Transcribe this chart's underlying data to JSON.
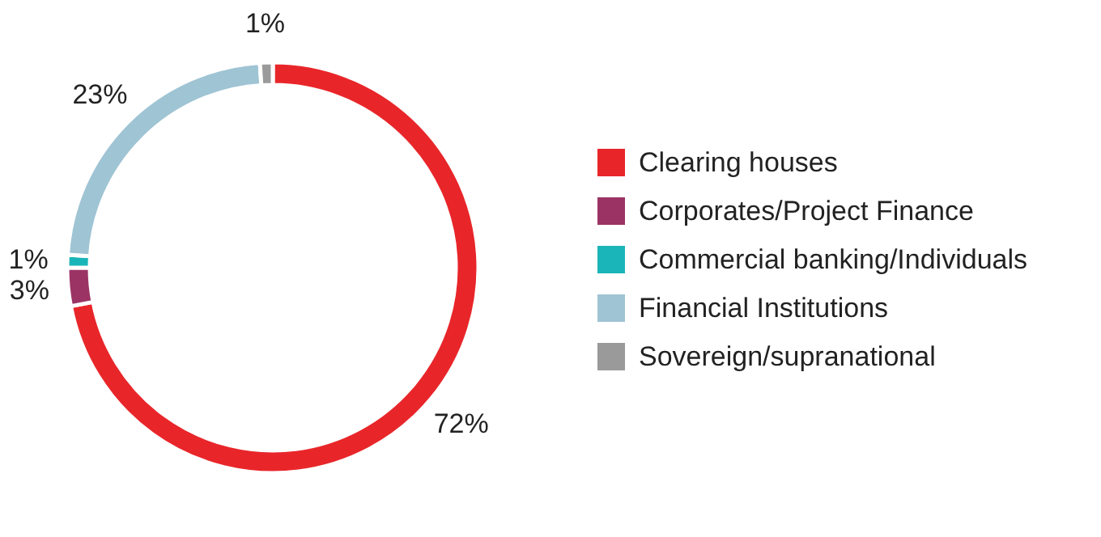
{
  "chart_data": {
    "type": "donut",
    "categories": [
      "Clearing houses",
      "Corporates/Project Finance",
      "Commercial banking/Individuals",
      "Financial Institutions",
      "Sovereign/supranational"
    ],
    "values": [
      72,
      3,
      1,
      23,
      1
    ],
    "colors": [
      "#e8262a",
      "#9b3465",
      "#1ab5b8",
      "#9fc4d4",
      "#9a9a9a"
    ],
    "value_labels": [
      "72%",
      "3%",
      "1%",
      "23%",
      "1%"
    ],
    "legend": "right"
  }
}
